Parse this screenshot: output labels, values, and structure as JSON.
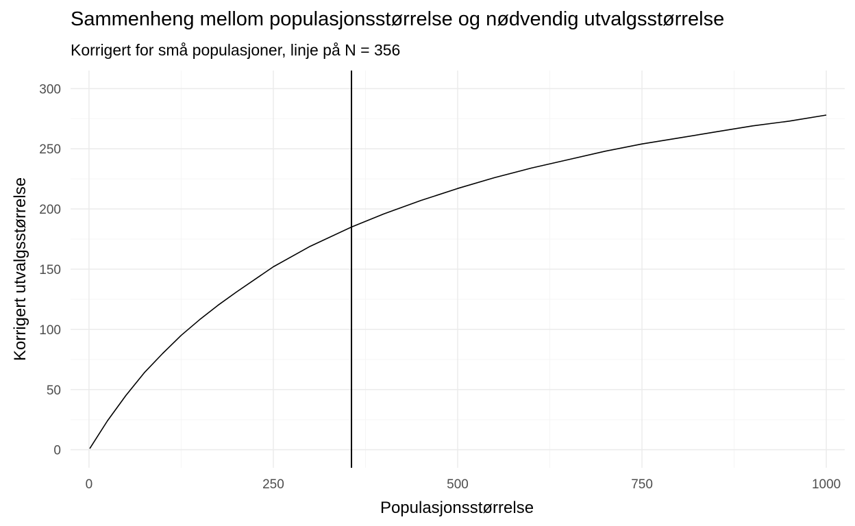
{
  "chart_data": {
    "type": "line",
    "title": "Sammenheng mellom populasjonsstørrelse og nødvendig utvalgsstørrelse",
    "subtitle": "Korrigert for små populasjoner, linje på N = 356",
    "xlabel": "Populasjonsstørrelse",
    "ylabel": "Korrigert utvalgsstørrelse",
    "xlim": [
      -25,
      1025
    ],
    "ylim": [
      -15,
      315
    ],
    "x_ticks": [
      0,
      250,
      500,
      750,
      1000
    ],
    "x_tick_labels": [
      "0",
      "250",
      "500",
      "750",
      "1000"
    ],
    "y_ticks": [
      0,
      50,
      100,
      150,
      200,
      250,
      300
    ],
    "y_tick_labels": [
      "0",
      "50",
      "100",
      "150",
      "200",
      "250",
      "300"
    ],
    "grid": true,
    "vline_x": 356,
    "series": [
      {
        "x": [
          1,
          25,
          50,
          75,
          100,
          125,
          150,
          175,
          200,
          250,
          300,
          356,
          400,
          450,
          500,
          550,
          600,
          650,
          700,
          750,
          800,
          850,
          900,
          950,
          1000
        ],
        "values": [
          1,
          24,
          45,
          64,
          80,
          95,
          108,
          120,
          131,
          152,
          169,
          185,
          196,
          207,
          217,
          226,
          234,
          241,
          248,
          254,
          259,
          264,
          269,
          273,
          278
        ]
      }
    ],
    "colors": {
      "line": "#000000",
      "grid_major": "#ebebeb",
      "grid_minor": "#f5f5f5"
    }
  }
}
